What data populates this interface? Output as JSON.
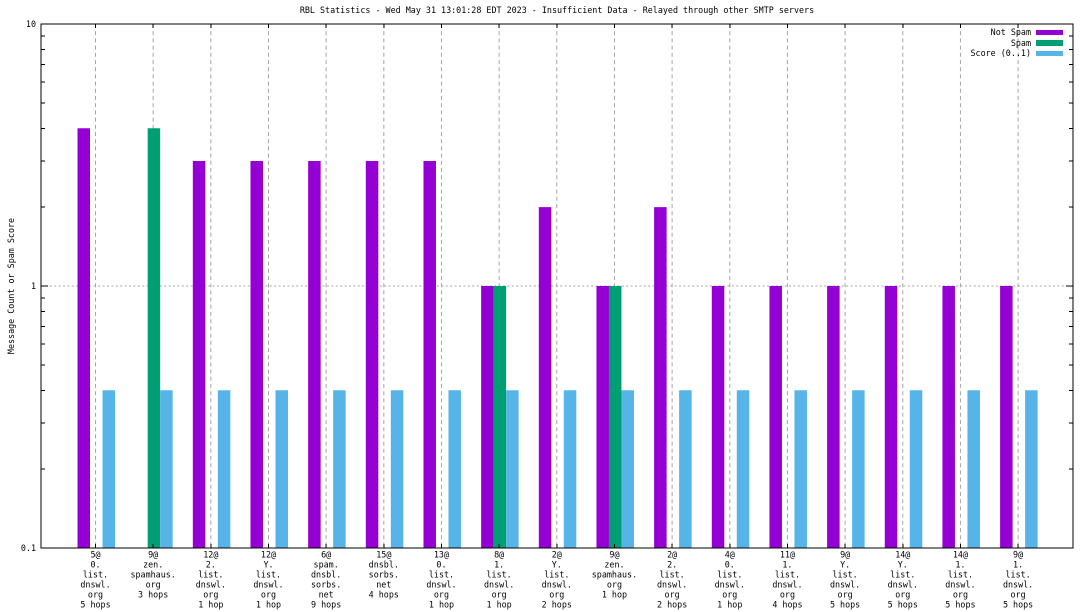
{
  "chart_data": {
    "type": "bar",
    "title": "RBL Statistics - Wed May 31 13:01:28 EDT 2023 - Insufficient Data - Relayed through other SMTP servers",
    "ylabel": "Message Count or Spam Score",
    "yscale": "log",
    "ylim": [
      0.1,
      10
    ],
    "ytick_labels": [
      "0.1",
      "1",
      "10"
    ],
    "ytick_values": [
      0.1,
      1,
      10
    ],
    "grid": "vertical dashed lines at each category; dotted horizontal line at y=1",
    "legend_position": "top-right",
    "legend": [
      {
        "label": "Not Spam",
        "color": "#9400d3"
      },
      {
        "label": "Spam",
        "color": "#009e73"
      },
      {
        "label": "Score (0..1)",
        "color": "#56b4e9"
      }
    ],
    "categories": [
      [
        "5@",
        "0.",
        "list.",
        "dnswl.",
        "org",
        "5 hops"
      ],
      [
        "9@",
        "zen.",
        "spamhaus.",
        "org",
        "3 hops"
      ],
      [
        "12@",
        "2.",
        "list.",
        "dnswl.",
        "org",
        "1 hop"
      ],
      [
        "12@",
        "Y.",
        "list.",
        "dnswl.",
        "org",
        "1 hop"
      ],
      [
        "6@",
        "spam.",
        "dnsbl.",
        "sorbs.",
        "net",
        "9 hops"
      ],
      [
        "15@",
        "dnsbl.",
        "sorbs.",
        "net",
        "4 hops"
      ],
      [
        "13@",
        "0.",
        "list.",
        "dnswl.",
        "org",
        "1 hop"
      ],
      [
        "8@",
        "1.",
        "list.",
        "dnswl.",
        "org",
        "1 hop"
      ],
      [
        "2@",
        "Y.",
        "list.",
        "dnswl.",
        "org",
        "2 hops"
      ],
      [
        "9@",
        "zen.",
        "spamhaus.",
        "org",
        "1 hop"
      ],
      [
        "2@",
        "2.",
        "list.",
        "dnswl.",
        "org",
        "2 hops"
      ],
      [
        "4@",
        "0.",
        "list.",
        "dnswl.",
        "org",
        "1 hop"
      ],
      [
        "11@",
        "1.",
        "list.",
        "dnswl.",
        "org",
        "4 hops"
      ],
      [
        "9@",
        "Y.",
        "list.",
        "dnswl.",
        "org",
        "5 hops"
      ],
      [
        "14@",
        "Y.",
        "list.",
        "dnswl.",
        "org",
        "5 hops"
      ],
      [
        "14@",
        "1.",
        "list.",
        "dnswl.",
        "org",
        "5 hops"
      ],
      [
        "9@",
        "1.",
        "list.",
        "dnswl.",
        "org",
        "5 hops"
      ]
    ],
    "series": [
      {
        "name": "Not Spam",
        "color": "#9400d3",
        "values": [
          4,
          null,
          3,
          3,
          3,
          3,
          3,
          1,
          2,
          1,
          2,
          1,
          1,
          1,
          1,
          1,
          1
        ]
      },
      {
        "name": "Spam",
        "color": "#009e73",
        "values": [
          null,
          4,
          null,
          null,
          null,
          null,
          null,
          1,
          null,
          1,
          null,
          null,
          null,
          null,
          null,
          null,
          null
        ]
      },
      {
        "name": "Score (0..1)",
        "color": "#56b4e9",
        "values": [
          0.4,
          0.4,
          0.4,
          0.4,
          0.4,
          0.4,
          0.4,
          0.4,
          0.4,
          0.4,
          0.4,
          0.4,
          0.4,
          0.4,
          0.4,
          0.4,
          0.4
        ]
      }
    ]
  }
}
